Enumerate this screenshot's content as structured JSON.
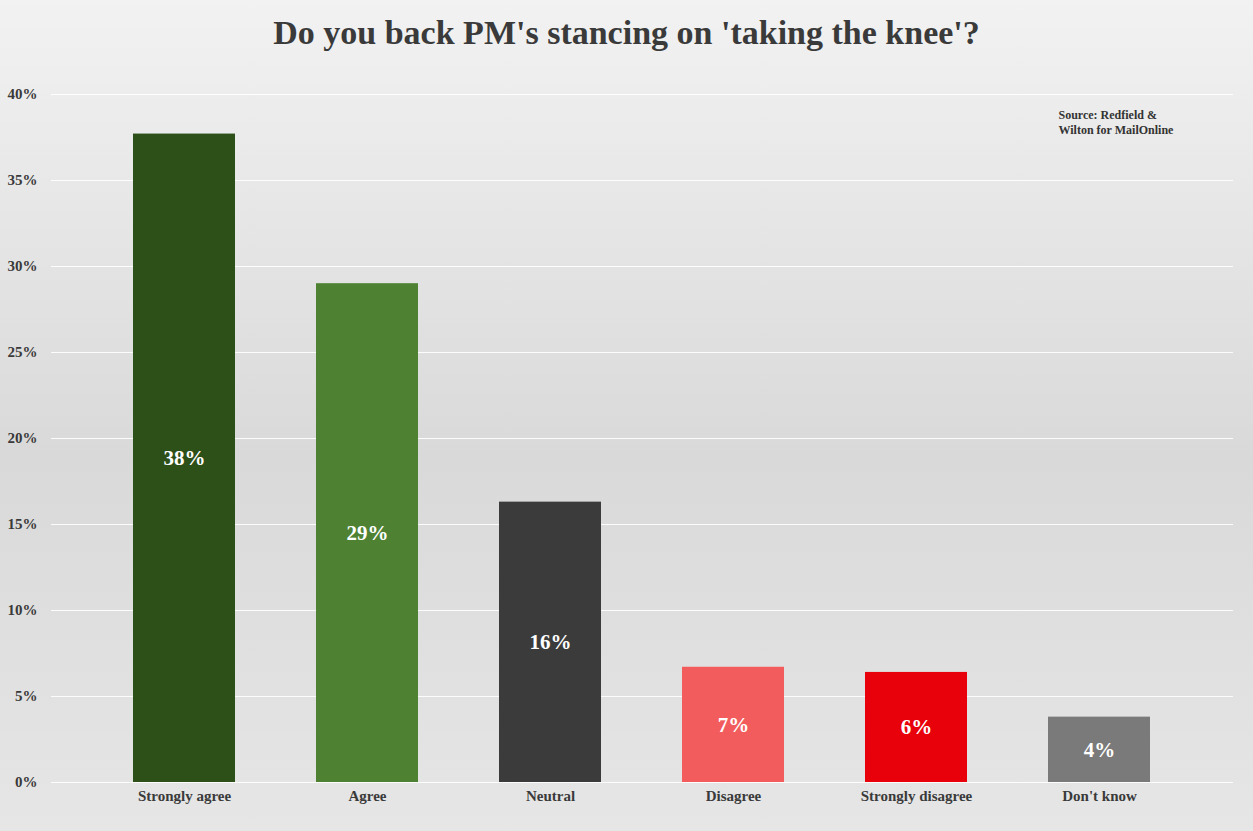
{
  "chart_data": {
    "type": "bar",
    "title": "Do you back PM's stancing on 'taking the knee'?",
    "annotation": "Source: Redfield & Wilton for MailOnline",
    "categories": [
      "Strongly agree",
      "Agree",
      "Neutral",
      "Disagree",
      "Strongly disagree",
      "Don't know"
    ],
    "values": [
      37.7,
      29,
      16.3,
      6.7,
      6.4,
      3.8
    ],
    "value_labels": [
      "38%",
      "29%",
      "16%",
      "7%",
      "6%",
      "4%"
    ],
    "colors": [
      "#2d5019",
      "#4e8232",
      "#3b3b3b",
      "#f25c5c",
      "#e8000b",
      "#7a7a7a"
    ],
    "ylim": [
      0,
      40
    ],
    "yticks": [
      {
        "value": 0,
        "label": "0%"
      },
      {
        "value": 5,
        "label": "5%"
      },
      {
        "value": 10,
        "label": "10%"
      },
      {
        "value": 15,
        "label": "15%"
      },
      {
        "value": 20,
        "label": "20%"
      },
      {
        "value": 25,
        "label": "25%"
      },
      {
        "value": 30,
        "label": "30%"
      },
      {
        "value": 35,
        "label": "35%"
      },
      {
        "value": 40,
        "label": "40%"
      }
    ],
    "grid": true,
    "data_labels": true
  }
}
